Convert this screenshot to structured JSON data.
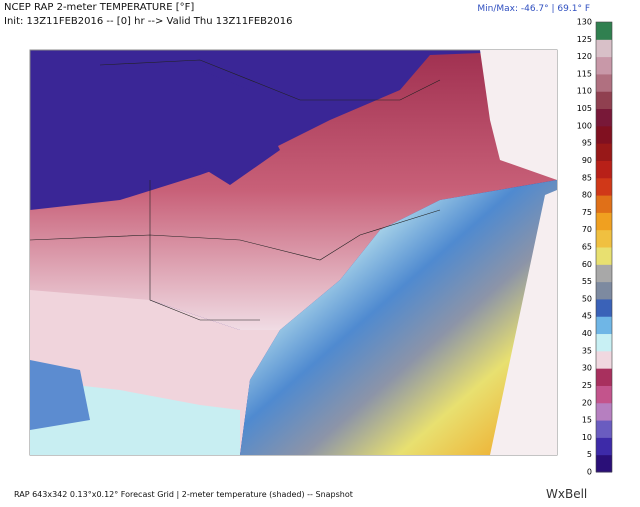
{
  "header": {
    "title": "NCEP RAP 2-meter TEMPERATURE [°F]",
    "init": "Init: 13Z11FEB2016 -- [0] hr --> Valid Thu 13Z11FEB2016",
    "minmax": "Min/Max: -46.7° | 69.1° F"
  },
  "colorbar": {
    "ticks": [
      0,
      5,
      10,
      15,
      20,
      25,
      30,
      35,
      40,
      45,
      50,
      55,
      60,
      65,
      70,
      75,
      80,
      85,
      90,
      95,
      100,
      105,
      110,
      115,
      120,
      125,
      130
    ],
    "colors": [
      "#2a0f78",
      "#3d2aa8",
      "#6a5cc0",
      "#b67fc0",
      "#c3548c",
      "#a8305e",
      "#f0d8e0",
      "#c8f0f4",
      "#6fb6e6",
      "#3a62b8",
      "#7d8aa0",
      "#a8a8a8",
      "#e8e070",
      "#f0c040",
      "#f0a020",
      "#e07018",
      "#d03818",
      "#b82018",
      "#981818",
      "#801020",
      "#781838",
      "#904050",
      "#b07080",
      "#c898a8",
      "#d8c0c8",
      "#308050"
    ]
  },
  "footer": {
    "caption": "RAP 643x342 0.13°x0.12° Forecast Grid | 2-meter temperature (shaded) -- Snapshot",
    "logo": "WxBell"
  }
}
